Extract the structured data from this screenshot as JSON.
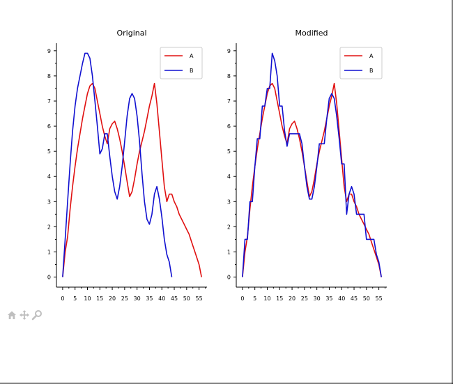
{
  "toolbar": {
    "items": [
      "home-icon",
      "pan-icon",
      "zoom-icon"
    ]
  },
  "colors": {
    "A": "#e01010",
    "B": "#1010d0",
    "axis": "#000000"
  },
  "chart_data": [
    {
      "type": "line",
      "title": "Original",
      "xlabel": "",
      "ylabel": "",
      "xlim": [
        -2.5,
        58.2
      ],
      "ylim": [
        -0.4,
        9.3
      ],
      "xticks": [
        0,
        5,
        10,
        15,
        20,
        25,
        30,
        35,
        40,
        45,
        50,
        55
      ],
      "yticks": [
        0,
        1,
        2,
        3,
        4,
        5,
        6,
        7,
        8,
        9
      ],
      "legend": "top-right",
      "series": [
        {
          "name": "A",
          "color": "#e01010",
          "points": [
            [
              0,
              0
            ],
            [
              1,
              1
            ],
            [
              2,
              1.6
            ],
            [
              3,
              2.7
            ],
            [
              4,
              3.6
            ],
            [
              5,
              4.4
            ],
            [
              6,
              5.1
            ],
            [
              7,
              5.7
            ],
            [
              8,
              6.3
            ],
            [
              9,
              6.8
            ],
            [
              10,
              7.3
            ],
            [
              11,
              7.6
            ],
            [
              12,
              7.7
            ],
            [
              13,
              7.5
            ],
            [
              14,
              7
            ],
            [
              15,
              6.5
            ],
            [
              16,
              6
            ],
            [
              17,
              5.6
            ],
            [
              18,
              5.3
            ],
            [
              19,
              5.9
            ],
            [
              20,
              6.1
            ],
            [
              21,
              6.2
            ],
            [
              22,
              5.9
            ],
            [
              23,
              5.5
            ],
            [
              24,
              5
            ],
            [
              25,
              4.4
            ],
            [
              26,
              3.8
            ],
            [
              27,
              3.2
            ],
            [
              28,
              3.4
            ],
            [
              29,
              3.9
            ],
            [
              30,
              4.5
            ],
            [
              31,
              5
            ],
            [
              32,
              5.4
            ],
            [
              33,
              5.8
            ],
            [
              34,
              6.3
            ],
            [
              35,
              6.8
            ],
            [
              36,
              7.2
            ],
            [
              37,
              7.7
            ],
            [
              38,
              6.9
            ],
            [
              39,
              5.8
            ],
            [
              40,
              4.7
            ],
            [
              41,
              3.6
            ],
            [
              42,
              3
            ],
            [
              43,
              3.3
            ],
            [
              44,
              3.3
            ],
            [
              45,
              3
            ],
            [
              46,
              2.8
            ],
            [
              47,
              2.5
            ],
            [
              48,
              2.3
            ],
            [
              49,
              2.1
            ],
            [
              50,
              1.9
            ],
            [
              51,
              1.7
            ],
            [
              52,
              1.4
            ],
            [
              53,
              1.1
            ],
            [
              54,
              0.8
            ],
            [
              55,
              0.5
            ],
            [
              56,
              0
            ]
          ]
        },
        {
          "name": "B",
          "color": "#1010d0",
          "points": [
            [
              0,
              0
            ],
            [
              1,
              1.5
            ],
            [
              2,
              3
            ],
            [
              3,
              4.5
            ],
            [
              4,
              5.8
            ],
            [
              5,
              6.8
            ],
            [
              6,
              7.5
            ],
            [
              7,
              8
            ],
            [
              8,
              8.5
            ],
            [
              9,
              8.9
            ],
            [
              10,
              8.9
            ],
            [
              11,
              8.7
            ],
            [
              12,
              8
            ],
            [
              13,
              7
            ],
            [
              14,
              6
            ],
            [
              15,
              4.9
            ],
            [
              16,
              5.1
            ],
            [
              17,
              5.7
            ],
            [
              18,
              5.7
            ],
            [
              19,
              4.8
            ],
            [
              20,
              4
            ],
            [
              21,
              3.4
            ],
            [
              22,
              3.1
            ],
            [
              23,
              3.6
            ],
            [
              24,
              4.4
            ],
            [
              25,
              5.4
            ],
            [
              26,
              6.4
            ],
            [
              27,
              7.1
            ],
            [
              28,
              7.3
            ],
            [
              29,
              7.1
            ],
            [
              30,
              6.4
            ],
            [
              31,
              5.4
            ],
            [
              32,
              4.1
            ],
            [
              33,
              3
            ],
            [
              34,
              2.3
            ],
            [
              35,
              2.1
            ],
            [
              36,
              2.5
            ],
            [
              37,
              3.3
            ],
            [
              38,
              3.6
            ],
            [
              39,
              3.1
            ],
            [
              40,
              2.4
            ],
            [
              41,
              1.5
            ],
            [
              42,
              0.9
            ],
            [
              43,
              0.6
            ],
            [
              44,
              0
            ]
          ]
        }
      ]
    },
    {
      "type": "line",
      "title": "Modified",
      "xlabel": "",
      "ylabel": "",
      "xlim": [
        -2.5,
        58.2
      ],
      "ylim": [
        -0.4,
        9.3
      ],
      "xticks": [
        0,
        5,
        10,
        15,
        20,
        25,
        30,
        35,
        40,
        45,
        50,
        55
      ],
      "yticks": [
        0,
        1,
        2,
        3,
        4,
        5,
        6,
        7,
        8,
        9
      ],
      "legend": "top-right",
      "series": [
        {
          "name": "A",
          "color": "#e01010",
          "points": [
            [
              0,
              0
            ],
            [
              1,
              1
            ],
            [
              2,
              1.6
            ],
            [
              3,
              2.7
            ],
            [
              4,
              3.6
            ],
            [
              5,
              4.4
            ],
            [
              6,
              5.1
            ],
            [
              7,
              5.7
            ],
            [
              8,
              6.3
            ],
            [
              9,
              6.8
            ],
            [
              10,
              7.3
            ],
            [
              11,
              7.6
            ],
            [
              12,
              7.7
            ],
            [
              13,
              7.5
            ],
            [
              14,
              7
            ],
            [
              15,
              6.5
            ],
            [
              16,
              6
            ],
            [
              17,
              5.6
            ],
            [
              18,
              5.3
            ],
            [
              19,
              5.9
            ],
            [
              20,
              6.1
            ],
            [
              21,
              6.2
            ],
            [
              22,
              5.9
            ],
            [
              23,
              5.5
            ],
            [
              24,
              5
            ],
            [
              25,
              4.4
            ],
            [
              26,
              3.8
            ],
            [
              27,
              3.2
            ],
            [
              28,
              3.4
            ],
            [
              29,
              3.9
            ],
            [
              30,
              4.5
            ],
            [
              31,
              5
            ],
            [
              32,
              5.4
            ],
            [
              33,
              5.8
            ],
            [
              34,
              6.3
            ],
            [
              35,
              6.8
            ],
            [
              36,
              7.2
            ],
            [
              37,
              7.7
            ],
            [
              38,
              6.9
            ],
            [
              39,
              5.8
            ],
            [
              40,
              4.7
            ],
            [
              41,
              3.6
            ],
            [
              42,
              3
            ],
            [
              43,
              3.3
            ],
            [
              44,
              3.3
            ],
            [
              45,
              3
            ],
            [
              46,
              2.8
            ],
            [
              47,
              2.5
            ],
            [
              48,
              2.3
            ],
            [
              49,
              2.1
            ],
            [
              50,
              1.9
            ],
            [
              51,
              1.7
            ],
            [
              52,
              1.4
            ],
            [
              53,
              1.1
            ],
            [
              54,
              0.8
            ],
            [
              55,
              0.5
            ],
            [
              56,
              0
            ]
          ]
        },
        {
          "name": "B",
          "color": "#1010d0",
          "points": [
            [
              0,
              0
            ],
            [
              1,
              1.5
            ],
            [
              2,
              1.5
            ],
            [
              3,
              3
            ],
            [
              4,
              3
            ],
            [
              5,
              4.4
            ],
            [
              6,
              5.5
            ],
            [
              7,
              5.5
            ],
            [
              8,
              6.8
            ],
            [
              9,
              6.8
            ],
            [
              10,
              7.5
            ],
            [
              11,
              7.5
            ],
            [
              12,
              8.9
            ],
            [
              13,
              8.6
            ],
            [
              14,
              8
            ],
            [
              15,
              6.8
            ],
            [
              16,
              6.8
            ],
            [
              17,
              5.8
            ],
            [
              18,
              5.2
            ],
            [
              19,
              5.7
            ],
            [
              20,
              5.7
            ],
            [
              21,
              5.7
            ],
            [
              22,
              5.7
            ],
            [
              23,
              5.7
            ],
            [
              24,
              5.3
            ],
            [
              25,
              4.4
            ],
            [
              26,
              3.6
            ],
            [
              27,
              3.1
            ],
            [
              28,
              3.1
            ],
            [
              29,
              3.6
            ],
            [
              30,
              4.4
            ],
            [
              31,
              5.3
            ],
            [
              32,
              5.3
            ],
            [
              33,
              5.3
            ],
            [
              34,
              6.3
            ],
            [
              35,
              7.1
            ],
            [
              36,
              7.3
            ],
            [
              37,
              7.1
            ],
            [
              38,
              6.4
            ],
            [
              39,
              5.5
            ],
            [
              40,
              4.5
            ],
            [
              41,
              4.5
            ],
            [
              42,
              2.5
            ],
            [
              43,
              3.3
            ],
            [
              44,
              3.6
            ],
            [
              45,
              3.3
            ],
            [
              46,
              2.5
            ],
            [
              47,
              2.5
            ],
            [
              48,
              2.5
            ],
            [
              49,
              2.5
            ],
            [
              50,
              1.5
            ],
            [
              51,
              1.5
            ],
            [
              52,
              1.5
            ],
            [
              53,
              1.5
            ],
            [
              54,
              0.9
            ],
            [
              55,
              0.6
            ],
            [
              56,
              0
            ]
          ]
        }
      ]
    }
  ]
}
